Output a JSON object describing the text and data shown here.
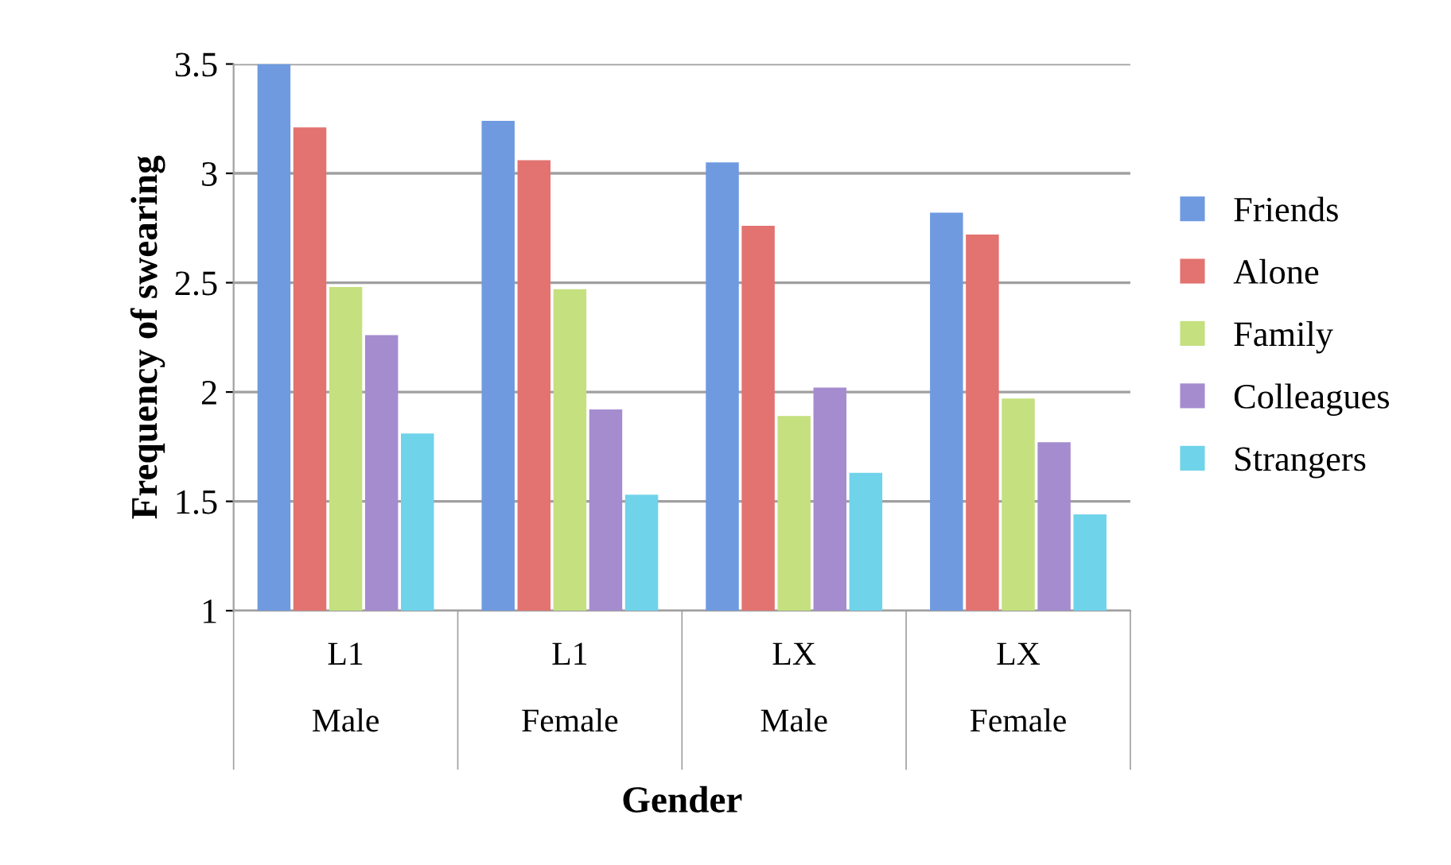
{
  "chart_data": {
    "type": "bar",
    "xlabel": "Gender",
    "ylabel": "Frequency of swearing",
    "categories": [
      "L1\nMale",
      "L1\nFemale",
      "LX\nMale",
      "LX\nFemale"
    ],
    "series": [
      {
        "name": "Friends",
        "color": "#6f9ae0",
        "values": [
          3.5,
          3.24,
          3.05,
          2.82
        ]
      },
      {
        "name": "Alone",
        "color": "#e27370",
        "values": [
          3.21,
          3.06,
          2.76,
          2.72
        ]
      },
      {
        "name": "Family",
        "color": "#c5e07f",
        "values": [
          2.48,
          2.47,
          1.89,
          1.97
        ]
      },
      {
        "name": "Colleagues",
        "color": "#a58ccf",
        "values": [
          2.26,
          1.92,
          2.02,
          1.77
        ]
      },
      {
        "name": "Strangers",
        "color": "#6fd3ea",
        "values": [
          1.81,
          1.53,
          1.63,
          1.44
        ]
      }
    ],
    "ylim": [
      1,
      3.5
    ],
    "yticks": [
      1,
      1.5,
      2,
      2.5,
      3,
      3.5
    ],
    "grid": "y",
    "legend": "right"
  }
}
